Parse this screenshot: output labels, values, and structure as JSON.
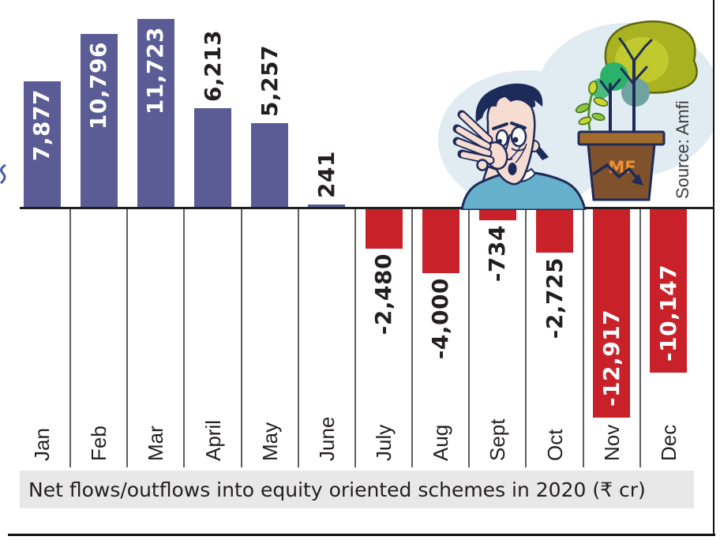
{
  "caption": {
    "text": "Net flows/outflows into equity oriented schemes in 2020 (₹ cr)"
  },
  "source": {
    "label": "Source: Amfi"
  },
  "illustration": {
    "pot_label": "MF",
    "description": "worried man beside mutual-fund pot with declining arrow and trees"
  },
  "chart_data": {
    "type": "bar",
    "title": "Net flows/outflows into equity oriented schemes in 2020 (₹ cr)",
    "source": "Source: Amfi",
    "categories": [
      "Jan",
      "Feb",
      "Mar",
      "April",
      "May",
      "June",
      "July",
      "Aug",
      "Sept",
      "Oct",
      "Nov",
      "Dec"
    ],
    "values": [
      7877,
      10796,
      11723,
      6213,
      5257,
      241,
      -2480,
      -4000,
      -734,
      -2725,
      -12917,
      -10147
    ],
    "value_labels": [
      "7,877",
      "10,796",
      "11,723",
      "6,213",
      "5,257",
      "241",
      "-2,480",
      "-4,000",
      "-734",
      "-2,725",
      "-12,917",
      "-10,147"
    ],
    "label_placement": [
      "in-top",
      "in-top",
      "in-top",
      "above",
      "above",
      "above",
      "below",
      "below",
      "below",
      "below",
      "in-bottom",
      "in-bottom"
    ],
    "ylim": [
      -13500,
      12500
    ],
    "grid": "vertical column separators only",
    "legend": "none",
    "colors": {
      "positive_bar": "#5b5c95",
      "negative_bar": "#c8212a",
      "label_inside": "#ffffff",
      "label_outside": "#231f20",
      "caption_bg": "#e8e8e8",
      "separator": "#5f5f5f"
    }
  }
}
